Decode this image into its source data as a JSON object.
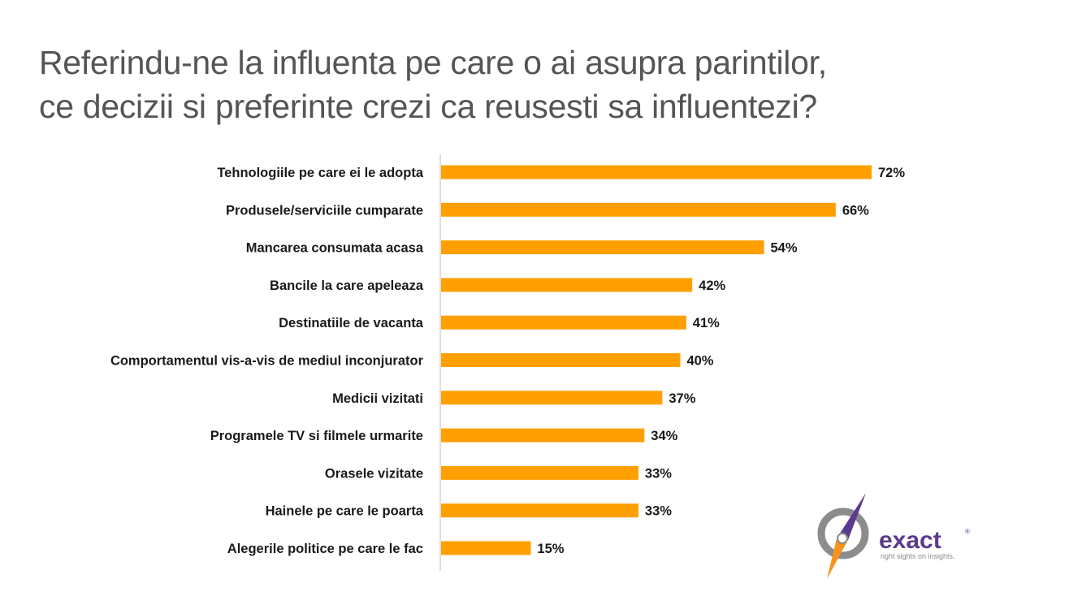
{
  "title": {
    "line1": "Referindu-ne la influenta pe care o ai asupra parintilor,",
    "line2": "ce decizii si preferinte crezi ca reusesti sa influentezi?"
  },
  "logo": {
    "word": "exact",
    "registered": "®",
    "tagline": "right sights on insights."
  },
  "colors": {
    "bar": "#FF9F00",
    "axis": "#BFBFBF",
    "logo_purple": "#5B3A8E",
    "logo_orange": "#F7941D",
    "logo_gray": "#8C8C8C"
  },
  "chart_data": {
    "type": "bar",
    "orientation": "horizontal",
    "categories": [
      "Tehnologiile pe care ei le adopta",
      "Produsele/serviciile cumparate",
      "Mancarea consumata acasa",
      "Bancile la care apeleaza",
      "Destinatiile de vacanta",
      "Comportamentul vis-a-vis de mediul inconjurator",
      "Medicii vizitati",
      "Programele TV si filmele urmarite",
      "Orasele vizitate",
      "Hainele pe care le poarta",
      "Alegerile politice pe care le fac"
    ],
    "values": [
      72,
      66,
      54,
      42,
      41,
      40,
      37,
      34,
      33,
      33,
      15
    ],
    "value_labels": [
      "72%",
      "66%",
      "54%",
      "42%",
      "41%",
      "40%",
      "37%",
      "34%",
      "33%",
      "33%",
      "15%"
    ],
    "unit": "%",
    "xlim": [
      0,
      72
    ],
    "grid": false,
    "legend": "none"
  }
}
